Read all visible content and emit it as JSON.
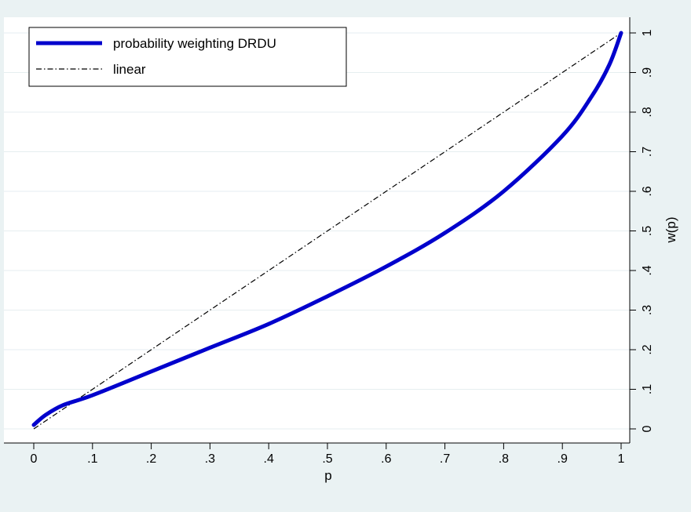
{
  "chart_data": {
    "type": "line",
    "title": "",
    "xlabel": "p",
    "ylabel": "w(p)",
    "xlim": [
      0,
      1
    ],
    "ylim": [
      0,
      1
    ],
    "xticks": [
      "0",
      ".1",
      ".2",
      ".3",
      ".4",
      ".5",
      ".6",
      ".7",
      ".8",
      ".9",
      "1"
    ],
    "yticks": [
      "0",
      ".1",
      ".2",
      ".3",
      ".4",
      ".5",
      ".6",
      ".7",
      ".8",
      ".9",
      "1"
    ],
    "grid": true,
    "legend_position": "top-left",
    "y_axis_side": "right",
    "series": [
      {
        "name": "probability weighting DRDU",
        "color": "#0000cc",
        "style": "solid-thick",
        "x": [
          0.0,
          0.02,
          0.05,
          0.1,
          0.2,
          0.3,
          0.4,
          0.5,
          0.6,
          0.7,
          0.8,
          0.9,
          0.95,
          0.98,
          1.0
        ],
        "y": [
          0.01,
          0.035,
          0.06,
          0.085,
          0.145,
          0.205,
          0.265,
          0.335,
          0.41,
          0.495,
          0.6,
          0.74,
          0.84,
          0.92,
          1.0
        ]
      },
      {
        "name": "linear",
        "color": "#000000",
        "style": "dash-dot",
        "x": [
          0,
          1
        ],
        "y": [
          0,
          1
        ]
      }
    ]
  }
}
